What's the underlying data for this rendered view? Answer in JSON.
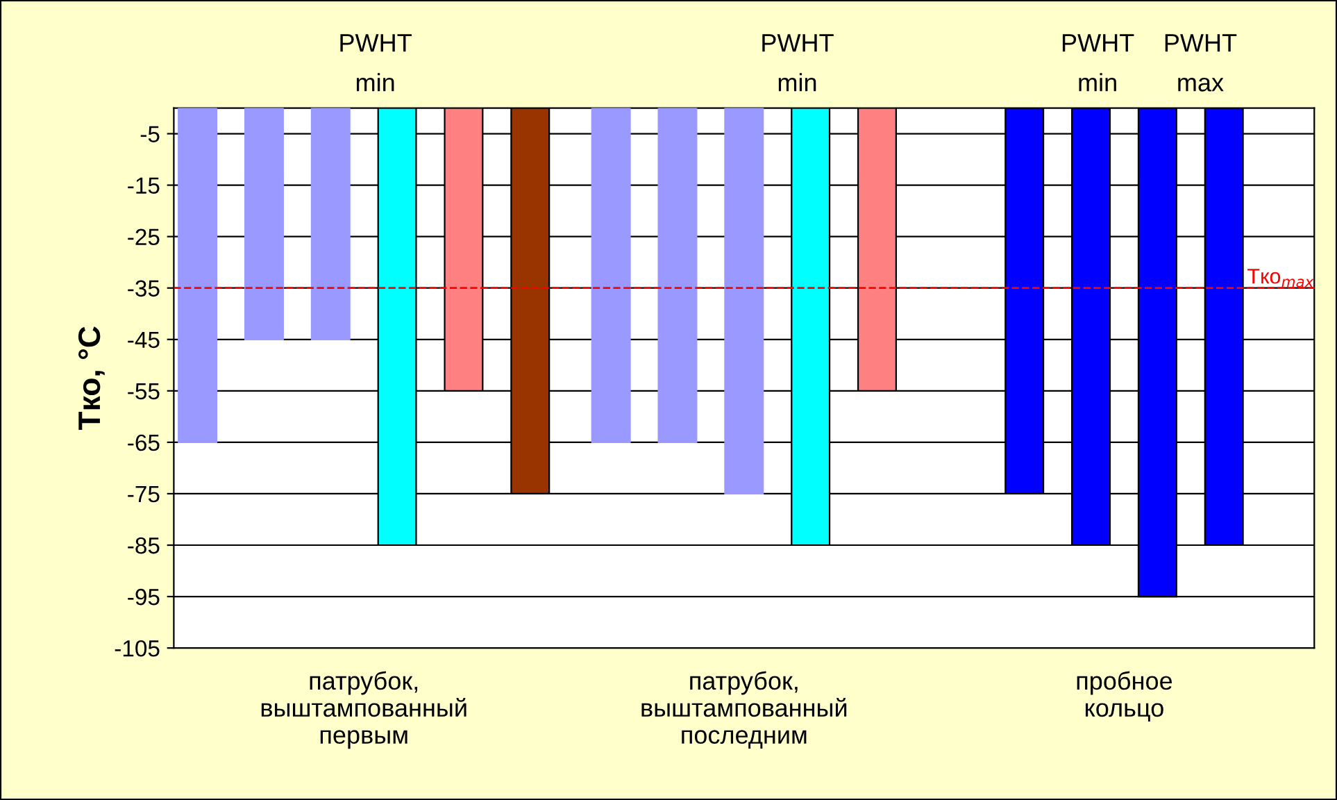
{
  "chart_data": {
    "type": "bar",
    "categories": [
      "патрубок,\nвыштампованный\nпервым",
      "патрубок,\nвыштампованный\nпоследним",
      "пробное\nкольцо"
    ],
    "series": [
      {
        "color": "#9999ff",
        "values": [
          -65,
          -65,
          null
        ]
      },
      {
        "color": "#9999ff",
        "values": [
          -45,
          -65,
          null
        ]
      },
      {
        "color": "#9999ff",
        "values": [
          -45,
          -75,
          null
        ]
      },
      {
        "color": "#00ffff",
        "values": [
          -85,
          -85,
          null
        ]
      },
      {
        "color": "#ff8080",
        "values": [
          -55,
          -55,
          null
        ]
      },
      {
        "color": "#993300",
        "values": [
          -75,
          null,
          null
        ]
      },
      {
        "color": "#0000ff",
        "values": [
          null,
          null,
          -75
        ]
      },
      {
        "color": "#0000ff",
        "values": [
          null,
          null,
          -85
        ]
      },
      {
        "color": "#0000ff",
        "values": [
          null,
          null,
          -95
        ]
      },
      {
        "color": "#0000ff",
        "values": [
          null,
          null,
          -85
        ]
      }
    ],
    "ylabel": "Tко, °C",
    "ylim": [
      -105,
      0
    ],
    "yticks": [
      -5,
      -15,
      -25,
      -35,
      -45,
      -55,
      -65,
      -75,
      -85,
      -95,
      -105
    ],
    "grid": "y",
    "ref_lines": [
      {
        "axis": "y",
        "value": -35,
        "label": "Tко$_{max}$",
        "color": "#ff0000",
        "line_style": "dashed"
      }
    ],
    "annotations": [
      "PWHT\nmin",
      "PWHT\nmin",
      "PWHT\nmin",
      "PWHT\nmax"
    ]
  }
}
